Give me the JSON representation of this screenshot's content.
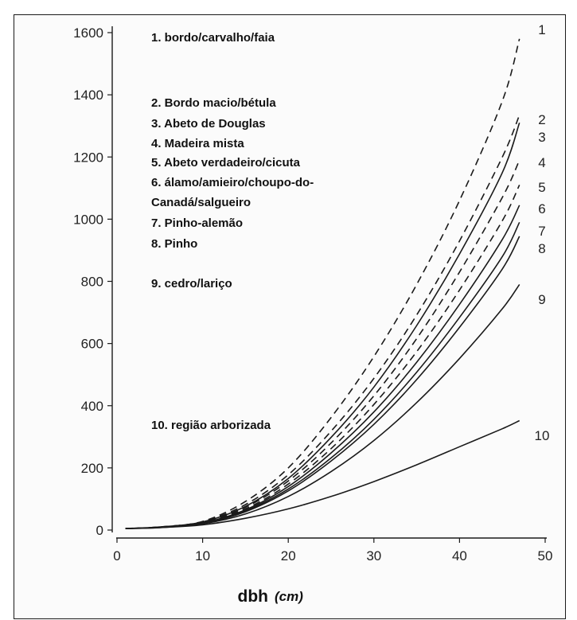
{
  "chart_data": {
    "type": "line",
    "xlabel": "dbh",
    "xunit": "(cm)",
    "ylabel": "",
    "xlim": [
      0,
      50
    ],
    "ylim": [
      0,
      1600
    ],
    "x_ticks": [
      0,
      10,
      20,
      30,
      40,
      50
    ],
    "y_ticks": [
      0,
      200,
      400,
      600,
      800,
      1000,
      1200,
      1400,
      1600
    ],
    "x_tick_labels": [
      "0",
      "10",
      "20",
      "30",
      "40",
      "50"
    ],
    "y_tick_labels": [
      "0",
      "200",
      "400",
      "600",
      "800",
      "1000",
      "1200",
      "1400",
      "1600"
    ],
    "grid": false,
    "x": [
      1,
      5,
      10,
      15,
      20,
      25,
      30,
      35,
      40,
      45,
      47
    ],
    "series": [
      {
        "label": "1",
        "style": "dashed",
        "values": [
          5,
          10,
          28,
          92,
          200,
          362,
          558,
          790,
          1060,
          1380,
          1580
        ]
      },
      {
        "label": "2",
        "style": "dashed",
        "values": [
          5,
          10,
          27,
          82,
          178,
          318,
          488,
          692,
          930,
          1200,
          1335
        ]
      },
      {
        "label": "3",
        "style": "solid",
        "values": [
          5,
          10,
          26,
          76,
          166,
          298,
          460,
          658,
          888,
          1150,
          1310
        ]
      },
      {
        "label": "4",
        "style": "dashed",
        "values": [
          5,
          9,
          25,
          73,
          158,
          280,
          432,
          616,
          830,
          1070,
          1190
        ]
      },
      {
        "label": "5",
        "style": "dashed",
        "values": [
          5,
          9,
          24,
          68,
          148,
          262,
          404,
          574,
          772,
          995,
          1110
        ]
      },
      {
        "label": "6",
        "style": "solid",
        "values": [
          5,
          9,
          23,
          65,
          140,
          248,
          380,
          540,
          726,
          935,
          1045
        ]
      },
      {
        "label": "7",
        "style": "solid",
        "values": [
          5,
          9,
          22,
          62,
          132,
          232,
          356,
          508,
          684,
          880,
          990
        ]
      },
      {
        "label": "8",
        "style": "solid",
        "values": [
          5,
          9,
          21,
          59,
          126,
          222,
          340,
          484,
          652,
          840,
          945
        ]
      },
      {
        "label": "9",
        "style": "solid",
        "values": [
          5,
          8,
          20,
          52,
          108,
          188,
          288,
          410,
          552,
          712,
          790
        ]
      },
      {
        "label": "10",
        "style": "solid",
        "values": [
          5,
          8,
          17,
          38,
          68,
          108,
          156,
          210,
          268,
          326,
          352
        ]
      }
    ],
    "legend": [
      "1. bordo/carvalho/faia",
      "2. Bordo macio/bétula",
      "3. Abeto de Douglas",
      "4. Madeira mista",
      "5. Abeto verdadeiro/cicuta",
      "6. álamo/amieiro/choupo-do-",
      "Canadá/salgueiro",
      "7. Pinho-alemão",
      "8. Pinho",
      "9. cedro/lariço",
      "10. região arborizada"
    ],
    "colors": {
      "line": "#1a1a1a",
      "frame": "#1a1a1a",
      "background": "#fbfbfb"
    }
  }
}
